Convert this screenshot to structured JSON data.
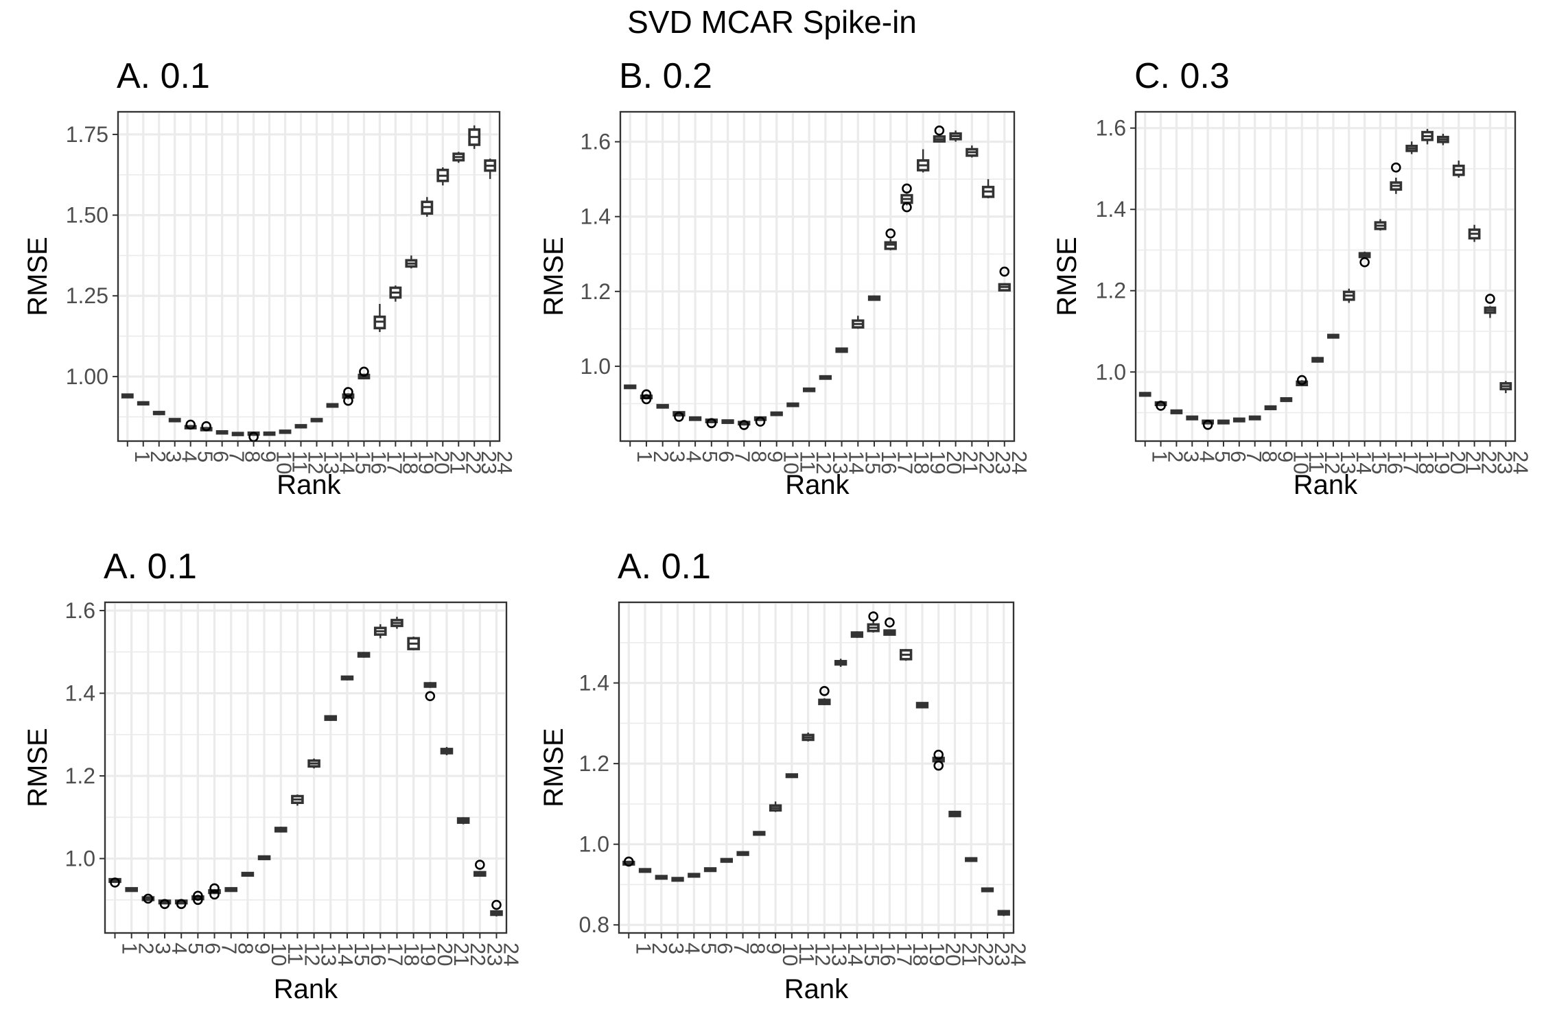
{
  "figure": {
    "title": "SVD MCAR Spike-in"
  },
  "chart_data": [
    {
      "type": "box",
      "title": "A. 0.1",
      "xlabel": "Rank",
      "ylabel": "RMSE",
      "categories": [
        "1",
        "2",
        "3",
        "4",
        "5",
        "6",
        "7",
        "8",
        "9",
        "10",
        "11",
        "12",
        "13",
        "14",
        "15",
        "16",
        "17",
        "18",
        "19",
        "20",
        "21",
        "22",
        "23",
        "24"
      ],
      "ylim": [
        0.8,
        1.82
      ],
      "yticks": [
        1.0,
        1.25,
        1.5,
        1.75
      ],
      "ytick_labels": [
        "1.00",
        "1.25",
        "1.50",
        "1.75"
      ],
      "medians": [
        0.94,
        0.917,
        0.887,
        0.865,
        0.843,
        0.837,
        0.827,
        0.822,
        0.823,
        0.823,
        0.829,
        0.846,
        0.865,
        0.911,
        0.94,
        1.0,
        1.17,
        1.26,
        1.35,
        1.525,
        1.622,
        1.68,
        1.742,
        1.653
      ],
      "q1": [
        0.936,
        0.914,
        0.884,
        0.862,
        0.84,
        0.834,
        0.824,
        0.819,
        0.82,
        0.82,
        0.826,
        0.843,
        0.862,
        0.907,
        0.935,
        0.995,
        1.15,
        1.245,
        1.341,
        1.505,
        1.606,
        1.67,
        1.718,
        1.638
      ],
      "q3": [
        0.944,
        0.92,
        0.89,
        0.868,
        0.846,
        0.84,
        0.83,
        0.825,
        0.826,
        0.826,
        0.832,
        0.849,
        0.868,
        0.914,
        0.944,
        1.005,
        1.185,
        1.275,
        1.36,
        1.541,
        1.64,
        1.69,
        1.765,
        1.669
      ],
      "whisker_low": [
        0.934,
        0.912,
        0.882,
        0.86,
        0.838,
        0.832,
        0.822,
        0.817,
        0.818,
        0.818,
        0.824,
        0.841,
        0.86,
        0.905,
        0.93,
        0.992,
        1.138,
        1.232,
        1.335,
        1.495,
        1.592,
        1.662,
        1.705,
        1.612
      ],
      "whisker_high": [
        0.946,
        0.922,
        0.892,
        0.87,
        0.848,
        0.842,
        0.832,
        0.827,
        0.828,
        0.828,
        0.834,
        0.851,
        0.87,
        0.916,
        0.948,
        1.008,
        1.225,
        1.282,
        1.375,
        1.556,
        1.648,
        1.696,
        1.778,
        1.675
      ],
      "outliers": [
        [
          5,
          0.851
        ],
        [
          6,
          0.846
        ],
        [
          9,
          0.813
        ],
        [
          15,
          0.925
        ],
        [
          15,
          0.952
        ],
        [
          16,
          1.015
        ]
      ]
    },
    {
      "type": "box",
      "title": "B. 0.2",
      "xlabel": "Rank",
      "ylabel": "RMSE",
      "categories": [
        "1",
        "2",
        "3",
        "4",
        "5",
        "6",
        "7",
        "8",
        "9",
        "10",
        "11",
        "12",
        "13",
        "14",
        "15",
        "16",
        "17",
        "18",
        "19",
        "20",
        "21",
        "22",
        "23",
        "24"
      ],
      "ylim": [
        0.8,
        1.68
      ],
      "yticks": [
        1.0,
        1.2,
        1.4,
        1.6
      ],
      "ytick_labels": [
        "1.0",
        "1.2",
        "1.4",
        "1.6"
      ],
      "medians": [
        0.945,
        0.918,
        0.893,
        0.873,
        0.86,
        0.854,
        0.852,
        0.848,
        0.86,
        0.873,
        0.897,
        0.937,
        0.97,
        1.043,
        1.113,
        1.182,
        1.325,
        1.447,
        1.537,
        1.607,
        1.615,
        1.572,
        1.467,
        1.212
      ],
      "q1": [
        0.942,
        0.915,
        0.89,
        0.869,
        0.857,
        0.851,
        0.849,
        0.845,
        0.857,
        0.87,
        0.894,
        0.934,
        0.967,
        1.039,
        1.104,
        1.178,
        1.314,
        1.437,
        1.524,
        1.601,
        1.607,
        1.563,
        1.453,
        1.203
      ],
      "q3": [
        0.948,
        0.921,
        0.896,
        0.877,
        0.863,
        0.857,
        0.855,
        0.851,
        0.863,
        0.876,
        0.9,
        0.94,
        0.973,
        1.047,
        1.122,
        1.186,
        1.331,
        1.457,
        1.55,
        1.614,
        1.622,
        1.58,
        1.479,
        1.219
      ],
      "whisker_low": [
        0.94,
        0.913,
        0.888,
        0.867,
        0.855,
        0.849,
        0.847,
        0.843,
        0.855,
        0.868,
        0.892,
        0.932,
        0.965,
        1.037,
        1.1,
        1.175,
        1.31,
        1.43,
        1.518,
        1.598,
        1.6,
        1.558,
        1.449,
        1.2
      ],
      "whisker_high": [
        0.95,
        0.923,
        0.898,
        0.879,
        0.865,
        0.859,
        0.857,
        0.853,
        0.865,
        0.878,
        0.902,
        0.942,
        0.975,
        1.05,
        1.135,
        1.189,
        1.34,
        1.461,
        1.58,
        1.62,
        1.63,
        1.59,
        1.5,
        1.222
      ],
      "outliers": [
        [
          2,
          0.912
        ],
        [
          2,
          0.925
        ],
        [
          4,
          0.865
        ],
        [
          6,
          0.848
        ],
        [
          8,
          0.843
        ],
        [
          9,
          0.852
        ],
        [
          17,
          1.355
        ],
        [
          18,
          1.425
        ],
        [
          18,
          1.475
        ],
        [
          20,
          1.63
        ],
        [
          24,
          1.253
        ]
      ]
    },
    {
      "type": "box",
      "title": "C. 0.3",
      "xlabel": "Rank",
      "ylabel": "RMSE",
      "categories": [
        "1",
        "2",
        "3",
        "4",
        "5",
        "6",
        "7",
        "8",
        "9",
        "10",
        "11",
        "12",
        "13",
        "14",
        "15",
        "16",
        "17",
        "18",
        "19",
        "20",
        "21",
        "22",
        "23",
        "24"
      ],
      "ylim": [
        0.83,
        1.64
      ],
      "yticks": [
        1.0,
        1.2,
        1.4,
        1.6
      ],
      "ytick_labels": [
        "1.0",
        "1.2",
        "1.4",
        "1.6"
      ],
      "medians": [
        0.945,
        0.922,
        0.902,
        0.887,
        0.877,
        0.877,
        0.882,
        0.887,
        0.912,
        0.932,
        0.972,
        1.03,
        1.088,
        1.188,
        1.287,
        1.36,
        1.458,
        1.55,
        1.58,
        1.572,
        1.497,
        1.34,
        1.152,
        0.965
      ],
      "q1": [
        0.942,
        0.919,
        0.899,
        0.884,
        0.874,
        0.874,
        0.879,
        0.884,
        0.909,
        0.929,
        0.968,
        1.026,
        1.085,
        1.178,
        1.283,
        1.352,
        1.449,
        1.544,
        1.571,
        1.566,
        1.485,
        1.329,
        1.146,
        0.958
      ],
      "q3": [
        0.948,
        0.925,
        0.905,
        0.89,
        0.88,
        0.88,
        0.885,
        0.89,
        0.915,
        0.935,
        0.976,
        1.034,
        1.091,
        1.197,
        1.292,
        1.368,
        1.466,
        1.556,
        1.59,
        1.578,
        1.507,
        1.35,
        1.158,
        0.972
      ],
      "whisker_low": [
        0.94,
        0.917,
        0.897,
        0.882,
        0.872,
        0.872,
        0.877,
        0.882,
        0.907,
        0.927,
        0.965,
        1.023,
        1.083,
        1.17,
        1.28,
        1.348,
        1.438,
        1.536,
        1.56,
        1.558,
        1.478,
        1.32,
        1.133,
        0.948
      ],
      "whisker_high": [
        0.95,
        0.927,
        0.907,
        0.892,
        0.882,
        0.882,
        0.887,
        0.892,
        0.917,
        0.937,
        0.98,
        1.037,
        1.093,
        1.205,
        1.296,
        1.376,
        1.478,
        1.567,
        1.598,
        1.586,
        1.52,
        1.362,
        1.162,
        0.978
      ],
      "outliers": [
        [
          2,
          0.917
        ],
        [
          5,
          0.87
        ],
        [
          11,
          0.98
        ],
        [
          15,
          1.27
        ],
        [
          17,
          1.503
        ],
        [
          23,
          1.18
        ]
      ]
    },
    {
      "type": "box",
      "title": "A. 0.1",
      "xlabel": "Rank",
      "ylabel": "RMSE",
      "categories": [
        "1",
        "2",
        "3",
        "4",
        "5",
        "6",
        "7",
        "8",
        "9",
        "10",
        "11",
        "12",
        "13",
        "14",
        "15",
        "16",
        "17",
        "18",
        "19",
        "20",
        "21",
        "22",
        "23",
        "24"
      ],
      "ylim": [
        0.82,
        1.62
      ],
      "yticks": [
        1.0,
        1.2,
        1.4,
        1.6
      ],
      "ytick_labels": [
        "1.0",
        "1.2",
        "1.4",
        "1.6"
      ],
      "medians": [
        0.947,
        0.925,
        0.903,
        0.895,
        0.895,
        0.905,
        0.92,
        0.925,
        0.962,
        1.002,
        1.07,
        1.143,
        1.23,
        1.34,
        1.437,
        1.493,
        1.55,
        1.57,
        1.52,
        1.42,
        1.26,
        1.092,
        0.963,
        0.868
      ],
      "q1": [
        0.944,
        0.922,
        0.9,
        0.892,
        0.892,
        0.902,
        0.917,
        0.922,
        0.959,
        0.999,
        1.066,
        1.135,
        1.223,
        1.336,
        1.434,
        1.489,
        1.542,
        1.563,
        1.507,
        1.416,
        1.255,
        1.087,
        0.959,
        0.864
      ],
      "q3": [
        0.95,
        0.928,
        0.906,
        0.898,
        0.898,
        0.908,
        0.923,
        0.928,
        0.965,
        1.005,
        1.074,
        1.151,
        1.237,
        1.344,
        1.44,
        1.497,
        1.558,
        1.577,
        1.533,
        1.424,
        1.265,
        1.097,
        0.967,
        0.872
      ],
      "whisker_low": [
        0.942,
        0.92,
        0.898,
        0.89,
        0.89,
        0.9,
        0.915,
        0.92,
        0.957,
        0.997,
        1.063,
        1.128,
        1.218,
        1.333,
        1.431,
        1.486,
        1.533,
        1.556,
        1.504,
        1.413,
        1.25,
        1.083,
        0.957,
        0.86
      ],
      "whisker_high": [
        0.952,
        0.93,
        0.908,
        0.9,
        0.9,
        0.91,
        0.925,
        0.93,
        0.967,
        1.007,
        1.077,
        1.155,
        1.242,
        1.347,
        1.442,
        1.5,
        1.567,
        1.585,
        1.537,
        1.427,
        1.27,
        1.1,
        0.97,
        0.875
      ],
      "outliers": [
        [
          1,
          0.942
        ],
        [
          3,
          0.903
        ],
        [
          4,
          0.89
        ],
        [
          5,
          0.89
        ],
        [
          6,
          0.91
        ],
        [
          6,
          0.9
        ],
        [
          7,
          0.928
        ],
        [
          7,
          0.913
        ],
        [
          20,
          1.393
        ],
        [
          23,
          0.985
        ],
        [
          24,
          0.888
        ]
      ]
    },
    {
      "type": "box",
      "title": "A. 0.1",
      "xlabel": "Rank",
      "ylabel": "RMSE",
      "categories": [
        "1",
        "2",
        "3",
        "4",
        "5",
        "6",
        "7",
        "8",
        "9",
        "10",
        "11",
        "12",
        "13",
        "14",
        "15",
        "16",
        "17",
        "18",
        "19",
        "20",
        "21",
        "22",
        "23",
        "24"
      ],
      "ylim": [
        0.78,
        1.6
      ],
      "yticks": [
        0.8,
        1.0,
        1.2,
        1.4
      ],
      "ytick_labels": [
        "0.8",
        "1.0",
        "1.2",
        "1.4"
      ],
      "medians": [
        0.953,
        0.935,
        0.918,
        0.913,
        0.923,
        0.937,
        0.96,
        0.977,
        1.027,
        1.09,
        1.17,
        1.265,
        1.353,
        1.45,
        1.52,
        1.537,
        1.525,
        1.47,
        1.345,
        1.21,
        1.075,
        0.962,
        0.887,
        0.83
      ],
      "q1": [
        0.95,
        0.932,
        0.915,
        0.91,
        0.92,
        0.934,
        0.957,
        0.974,
        1.024,
        1.084,
        1.167,
        1.259,
        1.348,
        1.446,
        1.515,
        1.529,
        1.52,
        1.459,
        1.34,
        1.206,
        1.07,
        0.959,
        0.884,
        0.826
      ],
      "q3": [
        0.956,
        0.938,
        0.921,
        0.916,
        0.926,
        0.94,
        0.963,
        0.98,
        1.03,
        1.096,
        1.173,
        1.271,
        1.358,
        1.454,
        1.525,
        1.545,
        1.53,
        1.481,
        1.35,
        1.214,
        1.08,
        0.965,
        0.89,
        0.834
      ],
      "whisker_low": [
        0.948,
        0.93,
        0.913,
        0.908,
        0.918,
        0.932,
        0.955,
        0.972,
        1.022,
        1.08,
        1.165,
        1.255,
        1.345,
        1.44,
        1.512,
        1.525,
        1.518,
        1.455,
        1.338,
        1.204,
        1.068,
        0.957,
        0.882,
        0.822
      ],
      "whisker_high": [
        0.958,
        0.94,
        0.923,
        0.918,
        0.928,
        0.942,
        0.965,
        0.982,
        1.032,
        1.106,
        1.175,
        1.277,
        1.362,
        1.46,
        1.528,
        1.557,
        1.532,
        1.484,
        1.352,
        1.216,
        1.082,
        0.967,
        0.892,
        0.836
      ],
      "outliers": [
        [
          1,
          0.957
        ],
        [
          13,
          1.38
        ],
        [
          16,
          1.565
        ],
        [
          17,
          1.55
        ],
        [
          20,
          1.222
        ],
        [
          20,
          1.195
        ]
      ]
    }
  ]
}
